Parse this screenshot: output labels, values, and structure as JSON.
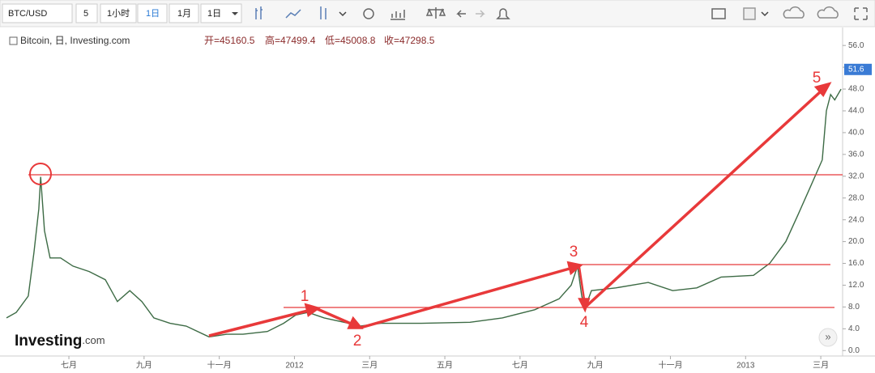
{
  "toolbar": {
    "symbol": "BTC/USD",
    "interval": "5",
    "buttons": [
      "1小时",
      "1日",
      "1月",
      "1日"
    ]
  },
  "chart_data": {
    "type": "line",
    "title": "Bitcoin, 日, Investing.com",
    "ohlc": [
      "开=45160.5",
      "高=47499.4",
      "低=45008.8",
      "收=47298.5"
    ],
    "logo": [
      "Investing",
      ".com"
    ],
    "scroll_button": "»",
    "annotations": [
      "1",
      "2",
      "3",
      "4",
      "5"
    ],
    "x": [
      -0.66,
      -0.4,
      -0.08,
      0.07,
      0.2,
      0.25,
      0.35,
      0.5,
      0.78,
      1.11,
      1.54,
      1.97,
      2.29,
      2.62,
      2.94,
      3.26,
      3.69,
      4.12,
      4.73,
      5.2,
      5.63,
      6.28,
      6.71,
      7.03,
      7.36,
      7.79,
      8.44,
      8.76,
      9.3,
      10.37,
      11.67,
      12.53,
      13.39,
      14.04,
      14.36,
      14.53,
      14.64,
      14.73,
      14.9,
      15.55,
      16.41,
      17.06,
      17.7,
      18.35,
      19.21,
      19.64,
      20.07,
      20.4,
      20.72,
      21.04,
      21.15,
      21.26,
      21.37,
      21.54
    ],
    "series": [
      {
        "color": "#3d6b45",
        "values": [
          6,
          7,
          10,
          18,
          26,
          31.9,
          22,
          17,
          17,
          15.5,
          14.5,
          13,
          9,
          11,
          9,
          6,
          5,
          4.5,
          2.5,
          3,
          3,
          3.5,
          5,
          6.5,
          7,
          6,
          5,
          4.5,
          5,
          5,
          5.2,
          6,
          7.5,
          9.5,
          12,
          15.5,
          10,
          7.8,
          11,
          11.5,
          12.5,
          11,
          11.5,
          13.5,
          13.8,
          16,
          20,
          25,
          30,
          35,
          44,
          47,
          46,
          48
        ]
      }
    ],
    "xlim": [
      -0.66,
      21.58
    ],
    "xticks": [
      {
        "value": 1,
        "label": "七月"
      },
      {
        "value": 3,
        "label": "九月"
      },
      {
        "value": 5,
        "label": "十一月"
      },
      {
        "value": 7,
        "label": "2012"
      },
      {
        "value": 9,
        "label": "三月"
      },
      {
        "value": 11,
        "label": "五月"
      },
      {
        "value": 13,
        "label": "七月"
      },
      {
        "value": 15,
        "label": "九月"
      },
      {
        "value": 17,
        "label": "十一月"
      },
      {
        "value": 19,
        "label": "2013"
      },
      {
        "value": 21,
        "label": "三月"
      }
    ],
    "ylim": [
      -1.0,
      58.7
    ],
    "yticks": [
      {
        "value": 0,
        "label": "0.0"
      },
      {
        "value": 4,
        "label": "4.0"
      },
      {
        "value": 8,
        "label": "8.0"
      },
      {
        "value": 12,
        "label": "12.0"
      },
      {
        "value": 16,
        "label": "16.0"
      },
      {
        "value": 20,
        "label": "20.0"
      },
      {
        "value": 24,
        "label": "24.0"
      },
      {
        "value": 28,
        "label": "28.0"
      },
      {
        "value": 32,
        "label": "32.0"
      },
      {
        "value": 36,
        "label": "36.0"
      },
      {
        "value": 40,
        "label": "40.0"
      },
      {
        "value": 44,
        "label": "44.0"
      },
      {
        "value": 48,
        "label": "48.0"
      },
      {
        "value": 52,
        "label": "52.0"
      },
      {
        "value": 56,
        "label": "56.0"
      }
    ],
    "last_price": {
      "value": 51.6,
      "label": "51.6",
      "color": "#3a7bd5"
    },
    "grid": false
  }
}
